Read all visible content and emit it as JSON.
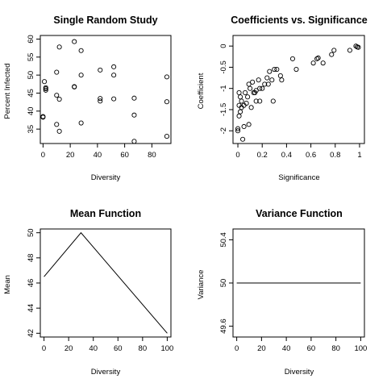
{
  "chart_data": [
    {
      "type": "scatter",
      "title": "Single Random Study",
      "xlabel": "Diversity",
      "ylabel": "Percent Infected",
      "xlim": [
        -2,
        94
      ],
      "ylim": [
        31,
        61
      ],
      "xticks": [
        0,
        20,
        40,
        60,
        80
      ],
      "yticks": [
        35,
        40,
        45,
        50,
        55,
        60
      ],
      "grid": false,
      "points": [
        [
          0,
          38.5
        ],
        [
          0,
          38.3
        ],
        [
          1,
          48.2
        ],
        [
          2,
          46.5
        ],
        [
          2,
          46.2
        ],
        [
          2,
          45.8
        ],
        [
          10,
          44.4
        ],
        [
          10,
          36.3
        ],
        [
          10,
          50.8
        ],
        [
          12,
          34.4
        ],
        [
          12,
          43.3
        ],
        [
          12,
          57.8
        ],
        [
          23,
          59.3
        ],
        [
          23,
          46.8
        ],
        [
          23,
          46.7
        ],
        [
          28,
          56.8
        ],
        [
          28,
          50.0
        ],
        [
          28,
          36.7
        ],
        [
          42,
          51.4
        ],
        [
          42,
          43.5
        ],
        [
          42,
          42.8
        ],
        [
          52,
          52.3
        ],
        [
          52,
          50.0
        ],
        [
          52,
          43.4
        ],
        [
          67,
          43.6
        ],
        [
          67,
          38.9
        ],
        [
          67,
          31.6
        ],
        [
          91,
          49.5
        ],
        [
          91,
          42.6
        ],
        [
          91,
          33.0
        ]
      ]
    },
    {
      "type": "scatter",
      "title": "Coefficients vs. Significance",
      "xlabel": "Significance",
      "ylabel": "Coefficient",
      "xlim": [
        -0.04,
        1.04
      ],
      "ylim": [
        -2.3,
        0.25
      ],
      "xticks": [
        0.0,
        0.2,
        0.4,
        0.6,
        0.8,
        1.0
      ],
      "yticks": [
        -2.0,
        -1.5,
        -1.0,
        -0.5,
        0.0
      ],
      "grid": false,
      "points": [
        [
          0.0,
          -2.0
        ],
        [
          0.0,
          -1.95
        ],
        [
          0.01,
          -1.65
        ],
        [
          0.01,
          -1.4
        ],
        [
          0.02,
          -1.2
        ],
        [
          0.02,
          -1.55
        ],
        [
          0.03,
          -1.3
        ],
        [
          0.04,
          -2.2
        ],
        [
          0.05,
          -1.4
        ],
        [
          0.06,
          -1.1
        ],
        [
          0.07,
          -1.35
        ],
        [
          0.08,
          -1.2
        ],
        [
          0.09,
          -0.9
        ],
        [
          0.1,
          -1.0
        ],
        [
          0.11,
          -1.45
        ],
        [
          0.12,
          -0.85
        ],
        [
          0.13,
          -1.1
        ],
        [
          0.14,
          -1.1
        ],
        [
          0.15,
          -1.05
        ],
        [
          0.17,
          -0.8
        ],
        [
          0.18,
          -1.0
        ],
        [
          0.2,
          -1.0
        ],
        [
          0.22,
          -0.9
        ],
        [
          0.24,
          -0.75
        ],
        [
          0.26,
          -0.6
        ],
        [
          0.28,
          -0.8
        ],
        [
          0.3,
          -0.55
        ],
        [
          0.32,
          -0.55
        ],
        [
          0.35,
          -0.7
        ],
        [
          0.36,
          -0.8
        ],
        [
          0.45,
          -0.3
        ],
        [
          0.48,
          -0.55
        ],
        [
          0.62,
          -0.4
        ],
        [
          0.65,
          -0.3
        ],
        [
          0.66,
          -0.28
        ],
        [
          0.7,
          -0.4
        ],
        [
          0.77,
          -0.2
        ],
        [
          0.79,
          -0.1
        ],
        [
          0.92,
          -0.1
        ],
        [
          0.97,
          0.0
        ],
        [
          0.98,
          -0.02
        ],
        [
          0.99,
          -0.03
        ],
        [
          0.05,
          -1.9
        ],
        [
          0.15,
          -1.3
        ],
        [
          0.29,
          -1.3
        ],
        [
          0.01,
          -1.1
        ],
        [
          0.03,
          -1.45
        ],
        [
          0.09,
          -1.85
        ],
        [
          0.18,
          -1.3
        ],
        [
          0.25,
          -0.9
        ]
      ]
    },
    {
      "type": "line",
      "title": "Mean Function",
      "xlabel": "Diversity",
      "ylabel": "Mean",
      "xlim": [
        -3,
        103
      ],
      "ylim": [
        41.7,
        50.3
      ],
      "xticks": [
        0,
        20,
        40,
        60,
        80,
        100
      ],
      "yticks": [
        42,
        44,
        46,
        48,
        50
      ],
      "grid": false,
      "x": [
        0,
        30,
        100
      ],
      "y": [
        46.5,
        50.0,
        42.0
      ]
    },
    {
      "type": "line",
      "title": "Variance Function",
      "xlabel": "Diversity",
      "ylabel": "Variance",
      "xlim": [
        -3,
        103
      ],
      "ylim": [
        49.5,
        50.5
      ],
      "xticks": [
        0,
        20,
        40,
        60,
        80,
        100
      ],
      "yticks": [
        49.6,
        50.0,
        50.4
      ],
      "grid": false,
      "x": [
        0,
        100
      ],
      "y": [
        50.0,
        50.0
      ]
    }
  ]
}
